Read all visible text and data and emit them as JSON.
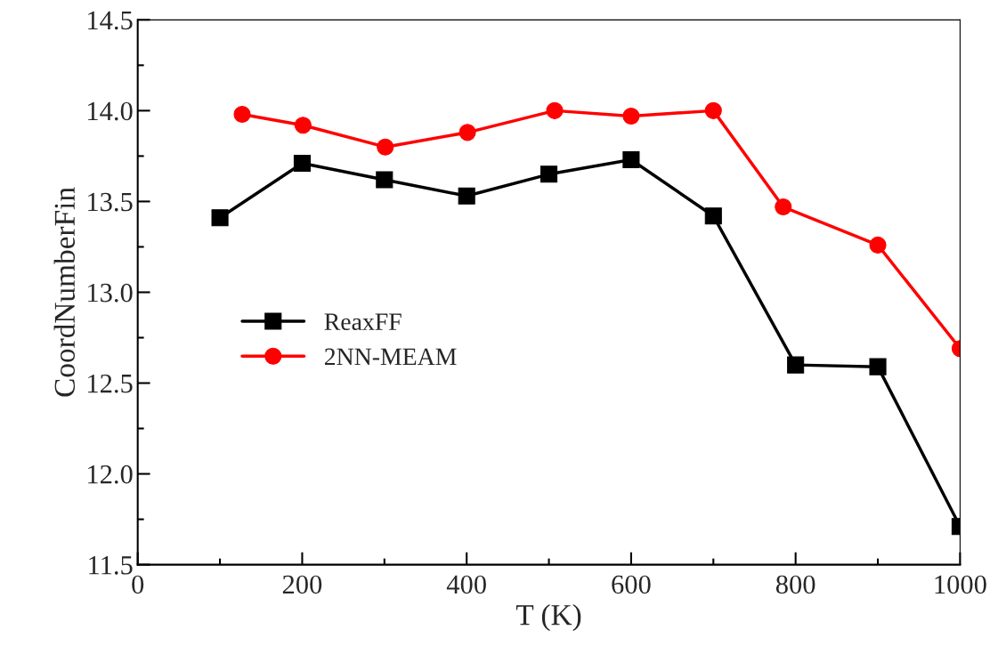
{
  "chart_data": {
    "type": "line",
    "xlabel": "T (K)",
    "ylabel": "CoordNumberFin",
    "xlim": [
      0,
      1000
    ],
    "xticks": [
      0,
      200,
      400,
      600,
      800,
      1000
    ],
    "ylim": [
      11.5,
      14.5
    ],
    "yticks": [
      {
        "value": 11.5,
        "label": "11.5"
      },
      {
        "value": 12.0,
        "label": "12.0"
      },
      {
        "value": 12.5,
        "label": "12.5"
      },
      {
        "value": 13.0,
        "label": "13.0"
      },
      {
        "value": 13.5,
        "label": "13.5"
      },
      {
        "value": 14.0,
        "label": "14.0"
      },
      {
        "value": 14.5,
        "label": "14.5"
      }
    ],
    "grid": false,
    "legend": "center left",
    "series": [
      {
        "name": "ReaxFF",
        "color": "#000000",
        "marker": "square",
        "x": [
          100,
          200,
          300,
          400,
          500,
          600,
          700,
          800,
          900,
          1000
        ],
        "values": [
          13.41,
          13.71,
          13.62,
          13.53,
          13.65,
          13.73,
          13.42,
          12.6,
          12.59,
          11.71
        ]
      },
      {
        "name": "2NN-MEAM",
        "color": "#ff0000",
        "marker": "circle",
        "x": [
          127,
          201,
          301,
          401,
          507,
          600,
          700,
          785,
          900,
          1000
        ],
        "values": [
          13.98,
          13.92,
          13.8,
          13.88,
          14.0,
          13.97,
          14.0,
          13.47,
          13.26,
          12.69
        ]
      }
    ]
  }
}
